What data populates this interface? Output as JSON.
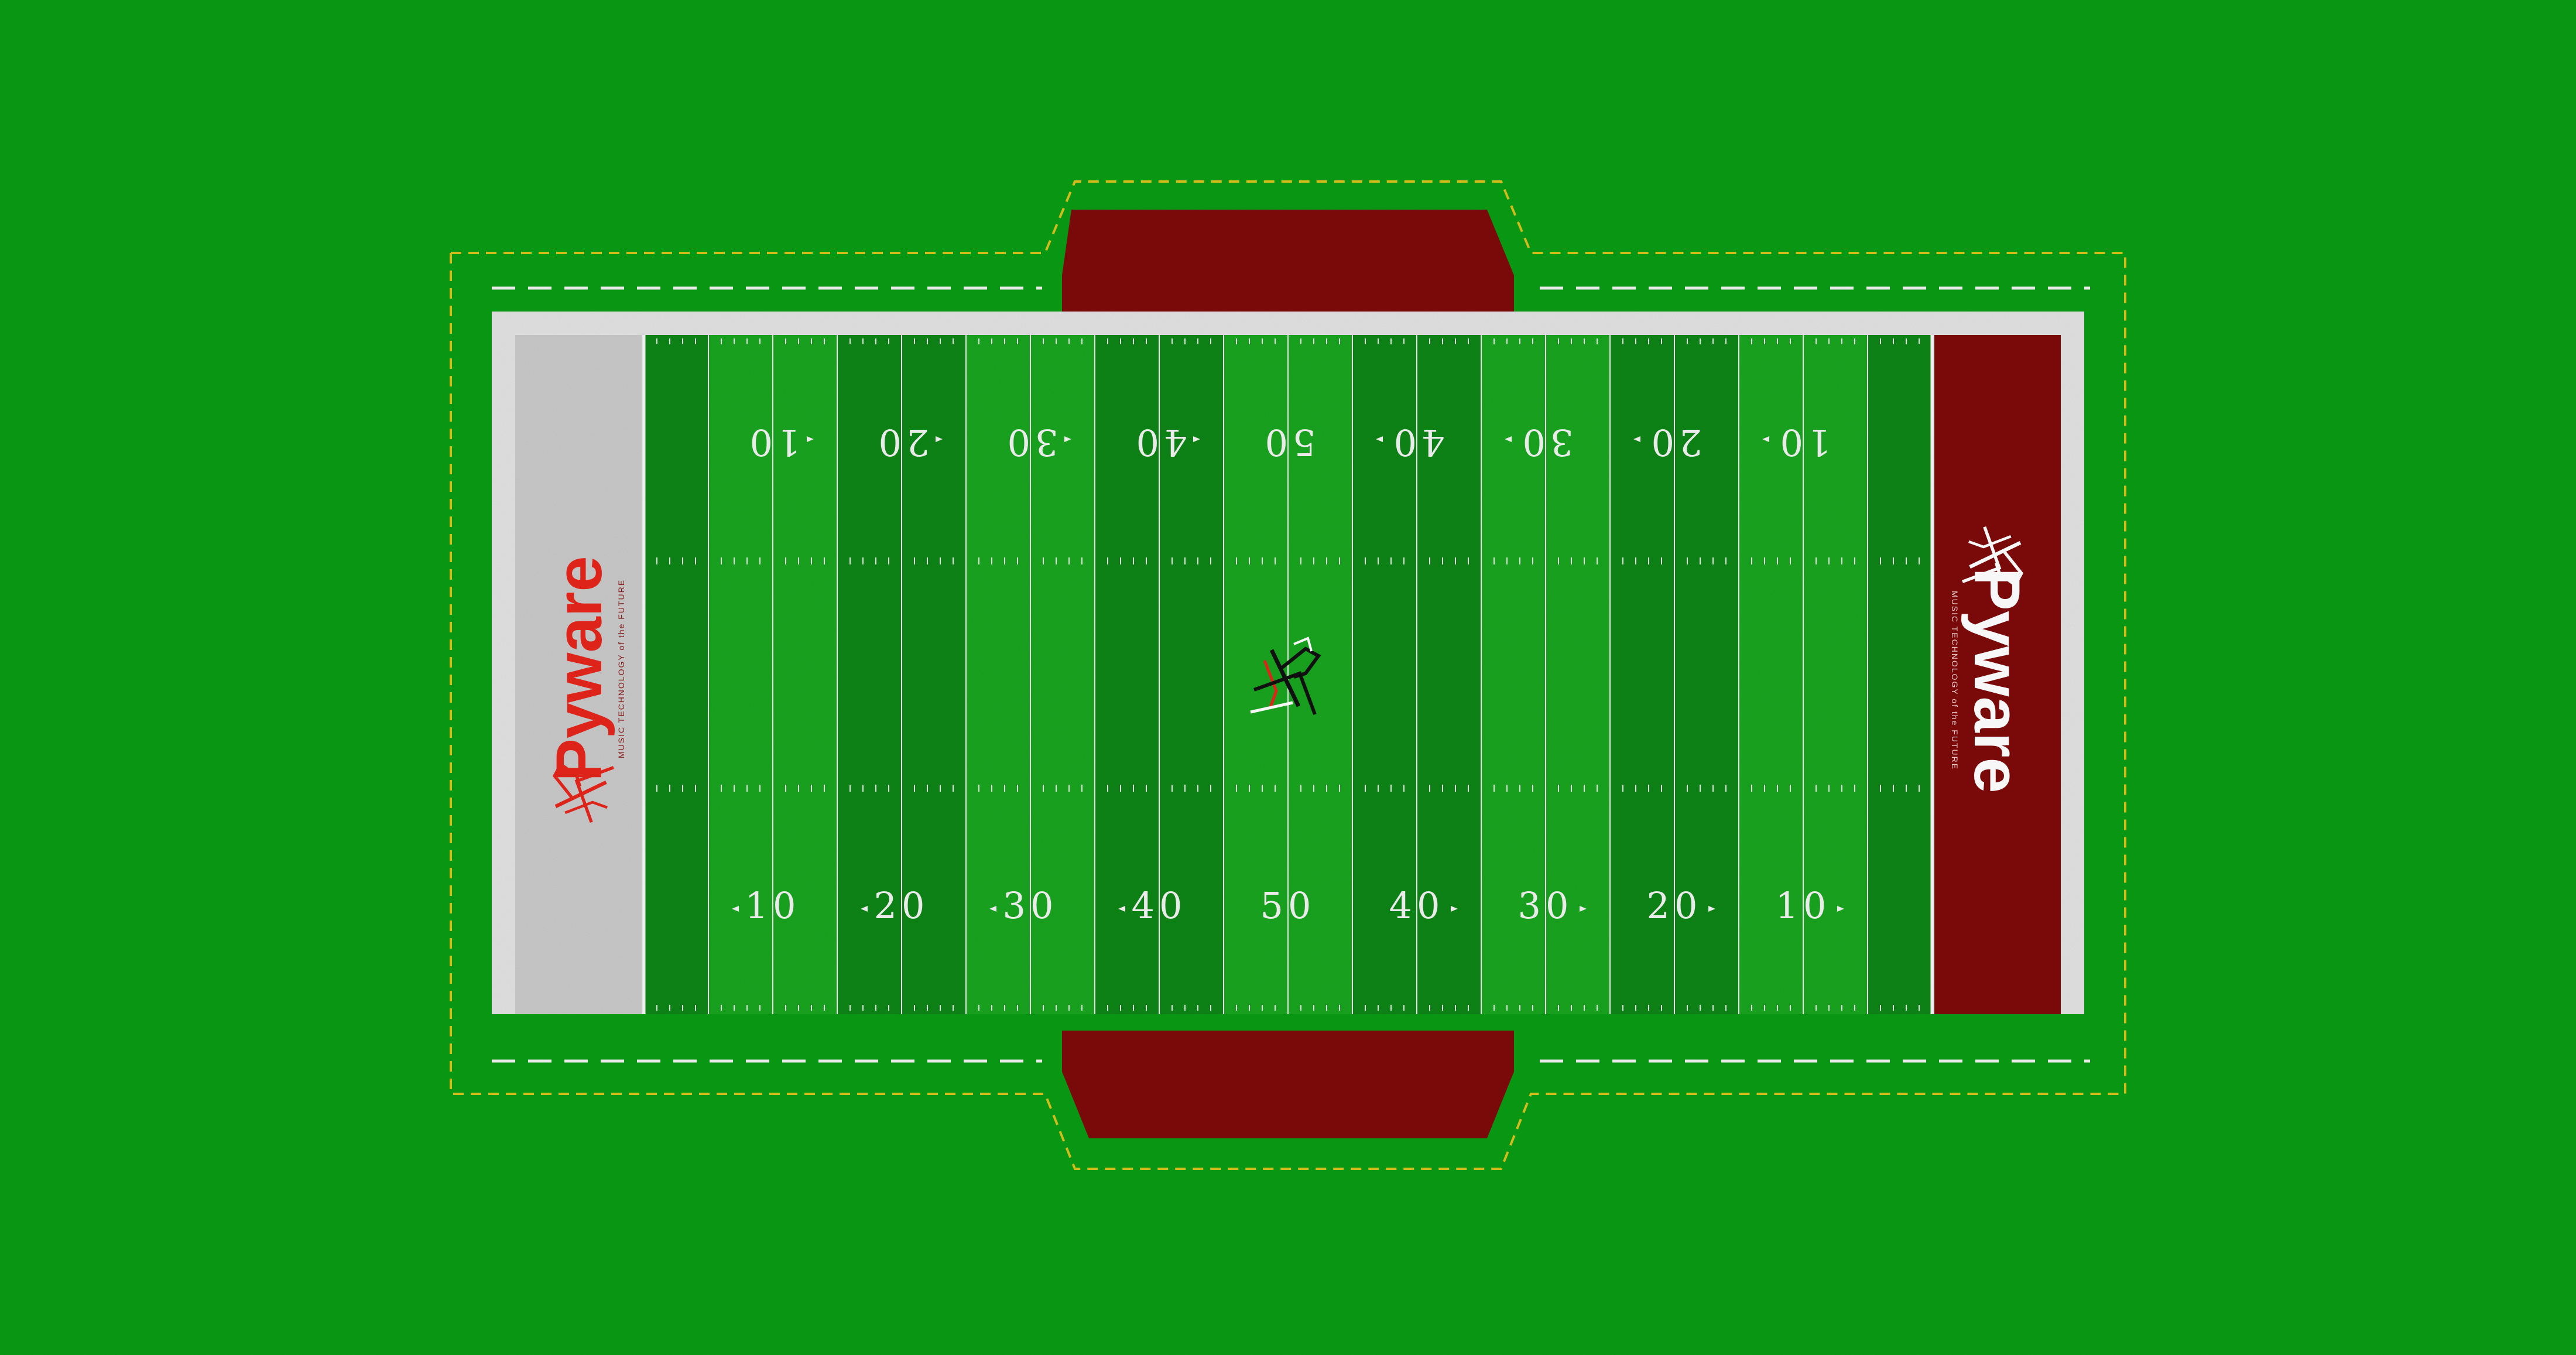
{
  "colors": {
    "background": "#0a9c14",
    "field_light": "#19a41f",
    "field_dark": "#0e8516",
    "border": "#e2e2e2",
    "endzone_left": "#c9c9c9",
    "endzone_right": "#7e0b0b",
    "team_area": "#7e0b0b",
    "dash_line": "#d9c21c",
    "logo_red": "#e5261b",
    "logo_white": "#ffffff",
    "numbers": "#f2f2f2"
  },
  "field": {
    "yard_numbers_top": [
      "10",
      "20",
      "30",
      "40",
      "50",
      "40",
      "30",
      "20",
      "10"
    ],
    "yard_numbers_bottom": [
      "10",
      "20",
      "30",
      "40",
      "50",
      "40",
      "30",
      "20",
      "10"
    ],
    "center_logo_icon": "pyware-conductor-icon"
  },
  "endzone_left": {
    "brand": "Pyware",
    "tagline": "MUSIC TECHNOLOGY of the FUTURE",
    "logo_icon": "pyware-conductor-icon"
  },
  "endzone_right": {
    "brand": "Pyware",
    "tagline": "MUSIC TECHNOLOGY of the FUTURE",
    "logo_icon": "pyware-conductor-icon"
  }
}
